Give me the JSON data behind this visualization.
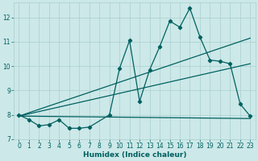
{
  "xlabel": "Humidex (Indice chaleur)",
  "bg_color": "#cce8e8",
  "line_color": "#006060",
  "grid_color": "#aacfcf",
  "xlim": [
    -0.5,
    23.5
  ],
  "ylim": [
    7.0,
    12.6
  ],
  "yticks": [
    7,
    8,
    9,
    10,
    11,
    12
  ],
  "xticks": [
    0,
    1,
    2,
    3,
    4,
    5,
    6,
    7,
    8,
    9,
    10,
    11,
    12,
    13,
    14,
    15,
    16,
    17,
    18,
    19,
    20,
    21,
    22,
    23
  ],
  "series1_x": [
    0,
    1,
    2,
    3,
    4,
    5,
    6,
    7,
    9,
    10,
    11,
    12,
    13,
    14,
    15,
    16,
    17,
    18,
    19,
    20,
    21,
    22,
    23
  ],
  "series1_y": [
    8.0,
    7.8,
    7.55,
    7.6,
    7.8,
    7.45,
    7.45,
    7.5,
    8.0,
    9.9,
    11.05,
    8.55,
    9.85,
    10.8,
    11.85,
    11.6,
    12.38,
    11.2,
    10.25,
    10.2,
    10.1,
    8.45,
    7.95
  ],
  "series2_x": [
    0,
    23
  ],
  "series2_y": [
    7.95,
    7.85
  ],
  "series3_x": [
    0,
    23
  ],
  "series3_y": [
    7.95,
    11.15
  ],
  "series4_x": [
    0,
    23
  ],
  "series4_y": [
    7.95,
    10.1
  ]
}
